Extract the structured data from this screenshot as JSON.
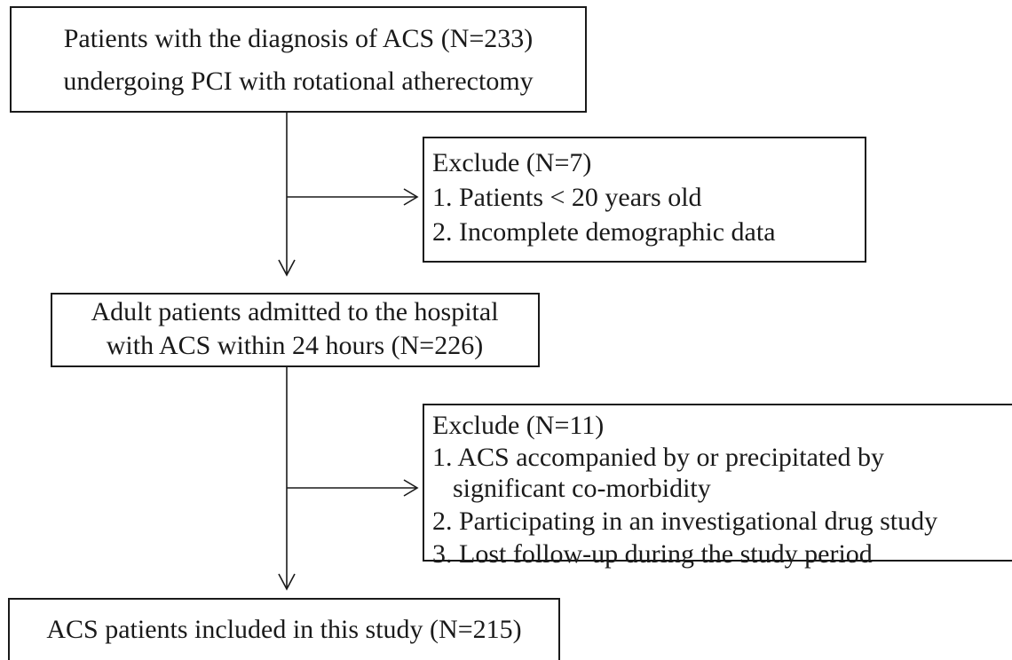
{
  "nodes": [
    {
      "lines": [
        "Patients with the diagnosis of ACS (N=233)",
        "undergoing PCI with rotational atherectomy"
      ]
    },
    {
      "lines": [
        "Exclude (N=7)",
        "1. Patients <  20 years old",
        "2. Incomplete demographic data"
      ]
    },
    {
      "lines": [
        "Adult patients admitted to the hospital",
        "with ACS within 24 hours (N=226)"
      ]
    },
    {
      "lines": [
        "Exclude (N=11)",
        "1. ACS accompanied by or precipitated by",
        "significant co-morbidity",
        "2. Participating in an investigational drug study",
        "3. Lost follow-up during the study period"
      ]
    },
    {
      "lines": [
        "ACS patients included in this study (N=215)"
      ]
    }
  ]
}
